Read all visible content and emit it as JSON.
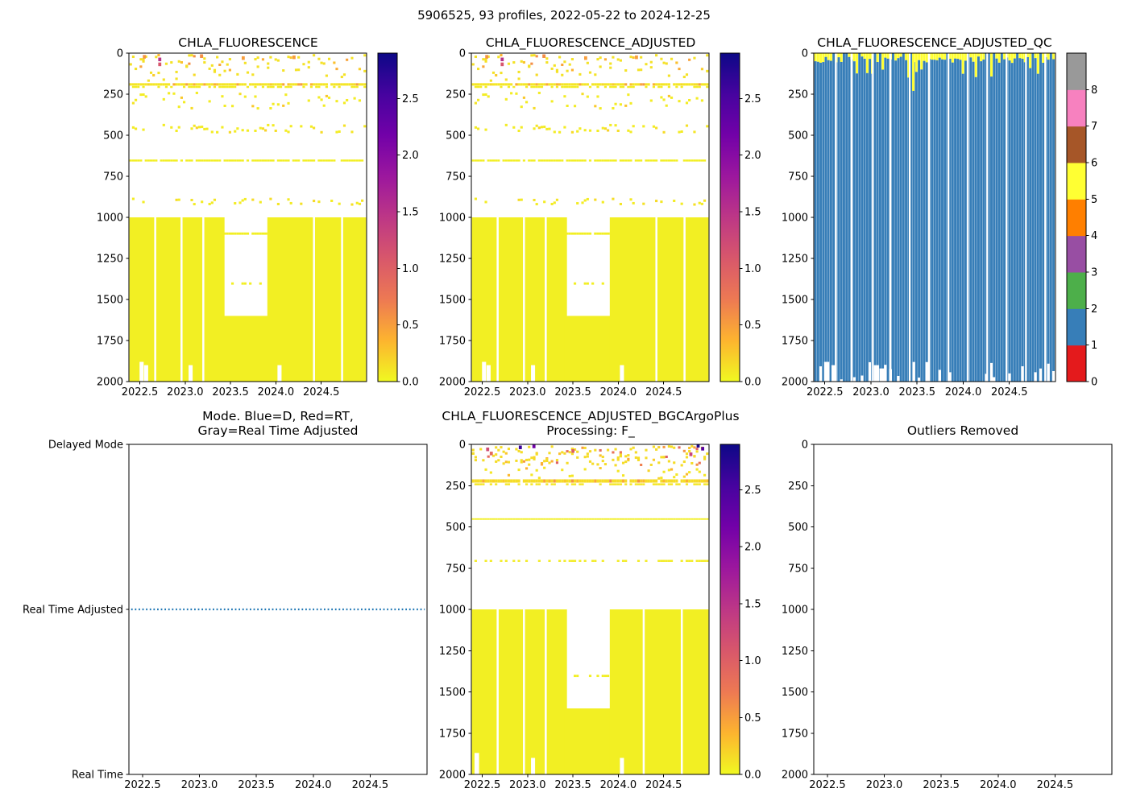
{
  "figure": {
    "title": "5906525, 93 profiles, 2022-05-22 to 2024-12-25",
    "background": "#ffffff"
  },
  "colors": {
    "axis": "#000000",
    "mode_line_blue": "#1f77b4",
    "plasma_r_stops": [
      "#0d0887",
      "#46039f",
      "#7201a8",
      "#9c179e",
      "#bd3786",
      "#d8576b",
      "#ed7953",
      "#fdb42f",
      "#f0f921"
    ],
    "qc_set1": [
      "#e41a1c",
      "#377eb8",
      "#4daf4a",
      "#984ea3",
      "#ff7f00",
      "#ffff33",
      "#a65628",
      "#f781bf",
      "#999999"
    ]
  },
  "profiles": {
    "count": 93,
    "t_start": 2022.4,
    "t_end": 2024.98
  },
  "axes_common": {
    "xlim": [
      2022.38,
      2025.0
    ],
    "xtick_labels": [
      "2022.5",
      "2023.0",
      "2023.5",
      "2024.0",
      "2024.5"
    ],
    "depth_tick_labels": [
      "0",
      "250",
      "500",
      "750",
      "1000",
      "1250",
      "1500",
      "1750",
      "2000"
    ],
    "depth_lim": [
      0,
      2000
    ]
  },
  "chart_data": [
    {
      "id": "chla_fluorescence",
      "type": "heatmap",
      "title": "CHLA_FLUORESCENCE",
      "seed": 11,
      "colorbar": {
        "cmap": "plasma_r",
        "vmin": 0.0,
        "vmax": 2.9,
        "tick_labels": [
          "0.0",
          "0.5",
          "1.0",
          "1.5",
          "2.0",
          "2.5"
        ]
      },
      "features": {
        "solid_blocks": [
          {
            "t0": 2022.4,
            "t1": 2023.42,
            "y0": 1000,
            "y1": 2000,
            "v": 0.05
          },
          {
            "t0": 2023.42,
            "t1": 2023.92,
            "y0": 1600,
            "y1": 2000,
            "v": 0.05
          },
          {
            "t0": 2023.92,
            "t1": 2024.98,
            "y0": 1000,
            "y1": 2000,
            "v": 0.05
          }
        ],
        "dash_bands": [
          {
            "t0": 2022.4,
            "t1": 2024.98,
            "y0": 183,
            "y1": 198,
            "density": 0.9,
            "v": 0.1,
            "vjitter": 0.45
          },
          {
            "t0": 2022.4,
            "t1": 2024.98,
            "y0": 200,
            "y1": 212,
            "density": 0.45,
            "v": 0.07
          },
          {
            "t0": 2022.4,
            "t1": 2024.98,
            "y0": 648,
            "y1": 660,
            "density": 0.8,
            "v": 0.05
          },
          {
            "t0": 2023.42,
            "t1": 2023.92,
            "y0": 1092,
            "y1": 1106,
            "density": 0.92,
            "v": 0.05
          },
          {
            "t0": 2023.46,
            "t1": 2023.9,
            "y0": 1396,
            "y1": 1410,
            "density": 0.3,
            "v": 0.05
          }
        ],
        "speckle_fields": [
          {
            "t0": 2022.4,
            "t1": 2024.98,
            "y0": 5,
            "y1": 165,
            "tries": 2,
            "p": 0.45,
            "v": 0.12,
            "vjitter": 0.5
          },
          {
            "t0": 2022.4,
            "t1": 2024.98,
            "y0": 235,
            "y1": 330,
            "tries": 1,
            "p": 0.45,
            "v": 0.07,
            "vjitter": 0.2
          },
          {
            "t0": 2022.4,
            "t1": 2024.98,
            "y0": 430,
            "y1": 475,
            "tries": 1,
            "p": 0.4,
            "v": 0.07,
            "vjitter": 0.15
          },
          {
            "t0": 2022.4,
            "t1": 2024.98,
            "y0": 880,
            "y1": 915,
            "tries": 1,
            "p": 0.35,
            "v": 0.07,
            "vjitter": 0.1
          }
        ],
        "dots": [
          {
            "t": 2022.72,
            "y": 38,
            "v": 1.5
          },
          {
            "t": 2022.72,
            "y": 68,
            "v": 1.1
          },
          {
            "t": 2022.55,
            "y": 22,
            "v": 0.55
          },
          {
            "t": 2023.18,
            "y": 18,
            "v": 0.6
          },
          {
            "t": 2023.64,
            "y": 30,
            "v": 0.5
          },
          {
            "t": 2024.2,
            "y": 25,
            "v": 0.5
          }
        ],
        "white_gaps": [
          {
            "t": 2022.67,
            "y0": 1000,
            "y1": 2000
          },
          {
            "t": 2022.96,
            "y0": 1000,
            "y1": 2000
          },
          {
            "t": 2023.2,
            "y0": 1000,
            "y1": 2000
          },
          {
            "t": 2024.42,
            "y0": 1000,
            "y1": 2000
          },
          {
            "t": 2024.73,
            "y0": 1000,
            "y1": 2000
          },
          {
            "t": 2022.52,
            "y0": 1880,
            "y1": 2000,
            "wmul": 1.6
          },
          {
            "t": 2022.57,
            "y0": 1900,
            "y1": 2000,
            "wmul": 1.6
          },
          {
            "t": 2023.06,
            "y0": 1900,
            "y1": 2000,
            "wmul": 1.6
          },
          {
            "t": 2024.04,
            "y0": 1900,
            "y1": 2000,
            "wmul": 1.6
          }
        ]
      }
    },
    {
      "id": "chla_fluorescence_adjusted",
      "type": "heatmap",
      "title": "CHLA_FLUORESCENCE_ADJUSTED",
      "seed": 11,
      "colorbar": {
        "cmap": "plasma_r",
        "vmin": 0.0,
        "vmax": 2.9,
        "tick_labels": [
          "0.0",
          "0.5",
          "1.0",
          "1.5",
          "2.0",
          "2.5"
        ]
      },
      "features": {
        "solid_blocks": [
          {
            "t0": 2022.4,
            "t1": 2023.42,
            "y0": 1000,
            "y1": 2000,
            "v": 0.05
          },
          {
            "t0": 2023.42,
            "t1": 2023.92,
            "y0": 1600,
            "y1": 2000,
            "v": 0.05
          },
          {
            "t0": 2023.92,
            "t1": 2024.98,
            "y0": 1000,
            "y1": 2000,
            "v": 0.05
          }
        ],
        "dash_bands": [
          {
            "t0": 2022.4,
            "t1": 2024.98,
            "y0": 183,
            "y1": 198,
            "density": 0.9,
            "v": 0.1,
            "vjitter": 0.45
          },
          {
            "t0": 2022.4,
            "t1": 2024.98,
            "y0": 200,
            "y1": 212,
            "density": 0.45,
            "v": 0.07
          },
          {
            "t0": 2022.4,
            "t1": 2024.98,
            "y0": 648,
            "y1": 660,
            "density": 0.8,
            "v": 0.05
          },
          {
            "t0": 2023.42,
            "t1": 2023.92,
            "y0": 1092,
            "y1": 1106,
            "density": 0.92,
            "v": 0.05
          },
          {
            "t0": 2023.46,
            "t1": 2023.9,
            "y0": 1396,
            "y1": 1410,
            "density": 0.3,
            "v": 0.05
          }
        ],
        "speckle_fields": [
          {
            "t0": 2022.4,
            "t1": 2024.98,
            "y0": 5,
            "y1": 165,
            "tries": 2,
            "p": 0.45,
            "v": 0.12,
            "vjitter": 0.5
          },
          {
            "t0": 2022.4,
            "t1": 2024.98,
            "y0": 235,
            "y1": 330,
            "tries": 1,
            "p": 0.45,
            "v": 0.07,
            "vjitter": 0.2
          },
          {
            "t0": 2022.4,
            "t1": 2024.98,
            "y0": 430,
            "y1": 475,
            "tries": 1,
            "p": 0.4,
            "v": 0.07,
            "vjitter": 0.15
          },
          {
            "t0": 2022.4,
            "t1": 2024.98,
            "y0": 880,
            "y1": 915,
            "tries": 1,
            "p": 0.35,
            "v": 0.07,
            "vjitter": 0.1
          }
        ],
        "dots": [
          {
            "t": 2022.72,
            "y": 38,
            "v": 1.5
          },
          {
            "t": 2022.72,
            "y": 68,
            "v": 1.1
          },
          {
            "t": 2022.55,
            "y": 22,
            "v": 0.55
          },
          {
            "t": 2023.18,
            "y": 18,
            "v": 0.6
          },
          {
            "t": 2023.64,
            "y": 30,
            "v": 0.5
          },
          {
            "t": 2024.2,
            "y": 25,
            "v": 0.5
          }
        ],
        "white_gaps": [
          {
            "t": 2022.67,
            "y0": 1000,
            "y1": 2000
          },
          {
            "t": 2022.96,
            "y0": 1000,
            "y1": 2000
          },
          {
            "t": 2023.2,
            "y0": 1000,
            "y1": 2000
          },
          {
            "t": 2024.42,
            "y0": 1000,
            "y1": 2000
          },
          {
            "t": 2024.73,
            "y0": 1000,
            "y1": 2000
          },
          {
            "t": 2022.52,
            "y0": 1880,
            "y1": 2000,
            "wmul": 1.6
          },
          {
            "t": 2022.57,
            "y0": 1900,
            "y1": 2000,
            "wmul": 1.6
          },
          {
            "t": 2023.06,
            "y0": 1900,
            "y1": 2000,
            "wmul": 1.6
          },
          {
            "t": 2024.04,
            "y0": 1900,
            "y1": 2000,
            "wmul": 1.6
          }
        ]
      }
    },
    {
      "id": "chla_fluorescence_adjusted_qc",
      "type": "qc",
      "title": "CHLA_FLUORESCENCE_ADJUSTED_QC",
      "seed": 33,
      "colorbar": {
        "cmap": "qc_set1",
        "n_bands": 9,
        "tick_labels": [
          "0",
          "1",
          "2",
          "3",
          "4",
          "5",
          "6",
          "7",
          "8"
        ]
      },
      "qc": {
        "surface_value": 5,
        "body_value": 1,
        "surface_chance": 0.85,
        "surface_depth_min": 20,
        "surface_depth_max": 60,
        "deep_surface_chance": 0.14,
        "deep_surface_max": 150,
        "full_depth_chance": 0.72,
        "bottom_min": 1880,
        "bottom_max": 2000,
        "deep_caps": [
          {
            "t": 2023.46,
            "depth": 230
          }
        ],
        "column_gaps": [
          2022.62,
          2022.79,
          2023.02,
          2023.21,
          2023.42,
          2023.63,
          2023.84,
          2024.05,
          2024.26,
          2024.47,
          2024.68,
          2024.89
        ],
        "deep_gaps": [
          {
            "t": 2022.52,
            "y0": 1880,
            "y1": 2000
          },
          {
            "t": 2022.6,
            "y0": 1900,
            "y1": 2000
          },
          {
            "t": 2023.06,
            "y0": 1900,
            "y1": 2000
          },
          {
            "t": 2023.12,
            "y0": 1920,
            "y1": 2000
          }
        ]
      }
    },
    {
      "id": "mode",
      "type": "mode",
      "title_line1": "Mode. Blue=D, Red=RT,",
      "title_line2": "Gray=Real Time Adjusted",
      "categories": [
        "Delayed Mode",
        "Real Time Adjusted",
        "Real Time"
      ],
      "line": {
        "category": "Real Time Adjusted",
        "t0": 2022.4,
        "t1": 2024.98,
        "style": "dotted",
        "color": "#1f77b4"
      }
    },
    {
      "id": "chla_fluorescence_adjusted_bgcargoplus",
      "type": "heatmap",
      "title_line1": "CHLA_FLUORESCENCE_ADJUSTED_BGCArgoPlus",
      "title_line2": "Processing: F_",
      "seed": 55,
      "colorbar": {
        "cmap": "plasma_r",
        "vmin": 0.0,
        "vmax": 2.9,
        "tick_labels": [
          "0.0",
          "0.5",
          "1.0",
          "1.5",
          "2.0",
          "2.5"
        ]
      },
      "features": {
        "solid_blocks": [
          {
            "t0": 2022.4,
            "t1": 2023.42,
            "y0": 1000,
            "y1": 2000,
            "v": 0.05
          },
          {
            "t0": 2023.42,
            "t1": 2023.92,
            "y0": 1600,
            "y1": 2000,
            "v": 0.05
          },
          {
            "t0": 2023.92,
            "t1": 2024.98,
            "y0": 1000,
            "y1": 2000,
            "v": 0.05
          }
        ],
        "dash_bands": [
          {
            "t0": 2022.4,
            "t1": 2024.98,
            "y0": 212,
            "y1": 232,
            "density": 0.95,
            "v": 0.15,
            "vjitter": 0.45
          },
          {
            "t0": 2022.4,
            "t1": 2024.98,
            "y0": 236,
            "y1": 248,
            "density": 0.5,
            "v": 0.1
          },
          {
            "t0": 2022.4,
            "t1": 2024.98,
            "y0": 448,
            "y1": 457,
            "density": 1.0,
            "v": 0.05
          },
          {
            "t0": 2022.4,
            "t1": 2024.98,
            "y0": 700,
            "y1": 712,
            "density": 0.45,
            "v": 0.07
          },
          {
            "t0": 2023.42,
            "t1": 2023.92,
            "y0": 1396,
            "y1": 1410,
            "density": 0.5,
            "v": 0.05
          }
        ],
        "speckle_fields": [
          {
            "t0": 2022.4,
            "t1": 2024.98,
            "y0": 4,
            "y1": 120,
            "tries": 3,
            "p": 0.5,
            "v": 0.15,
            "vjitter": 0.9
          },
          {
            "t0": 2022.4,
            "t1": 2024.98,
            "y0": 130,
            "y1": 200,
            "tries": 1,
            "p": 0.3,
            "v": 0.1,
            "vjitter": 0.3
          }
        ],
        "dots": [
          {
            "t": 2022.56,
            "y": 30,
            "v": 1.2
          },
          {
            "t": 2022.6,
            "y": 55,
            "v": 0.9
          },
          {
            "t": 2022.92,
            "y": 18,
            "v": 2.6
          },
          {
            "t": 2023.07,
            "y": 12,
            "v": 2.2
          },
          {
            "t": 2023.5,
            "y": 40,
            "v": 1.0
          },
          {
            "t": 2024.88,
            "y": 8,
            "v": 2.8
          },
          {
            "t": 2024.93,
            "y": 26,
            "v": 2.4
          },
          {
            "t": 2024.8,
            "y": 60,
            "v": 1.3
          }
        ],
        "white_gaps": [
          {
            "t": 2022.44,
            "y0": 1870,
            "y1": 2000,
            "wmul": 1.8
          },
          {
            "t": 2022.67,
            "y0": 1000,
            "y1": 2000
          },
          {
            "t": 2022.96,
            "y0": 1000,
            "y1": 2000
          },
          {
            "t": 2023.2,
            "y0": 1000,
            "y1": 2000
          },
          {
            "t": 2023.06,
            "y0": 1900,
            "y1": 2000,
            "wmul": 1.6
          },
          {
            "t": 2024.28,
            "y0": 1000,
            "y1": 2000
          },
          {
            "t": 2024.7,
            "y0": 1000,
            "y1": 2000
          },
          {
            "t": 2024.04,
            "y0": 1900,
            "y1": 2000,
            "wmul": 1.6
          }
        ]
      }
    },
    {
      "id": "outliers_removed",
      "type": "empty",
      "title": "Outliers Removed"
    }
  ]
}
